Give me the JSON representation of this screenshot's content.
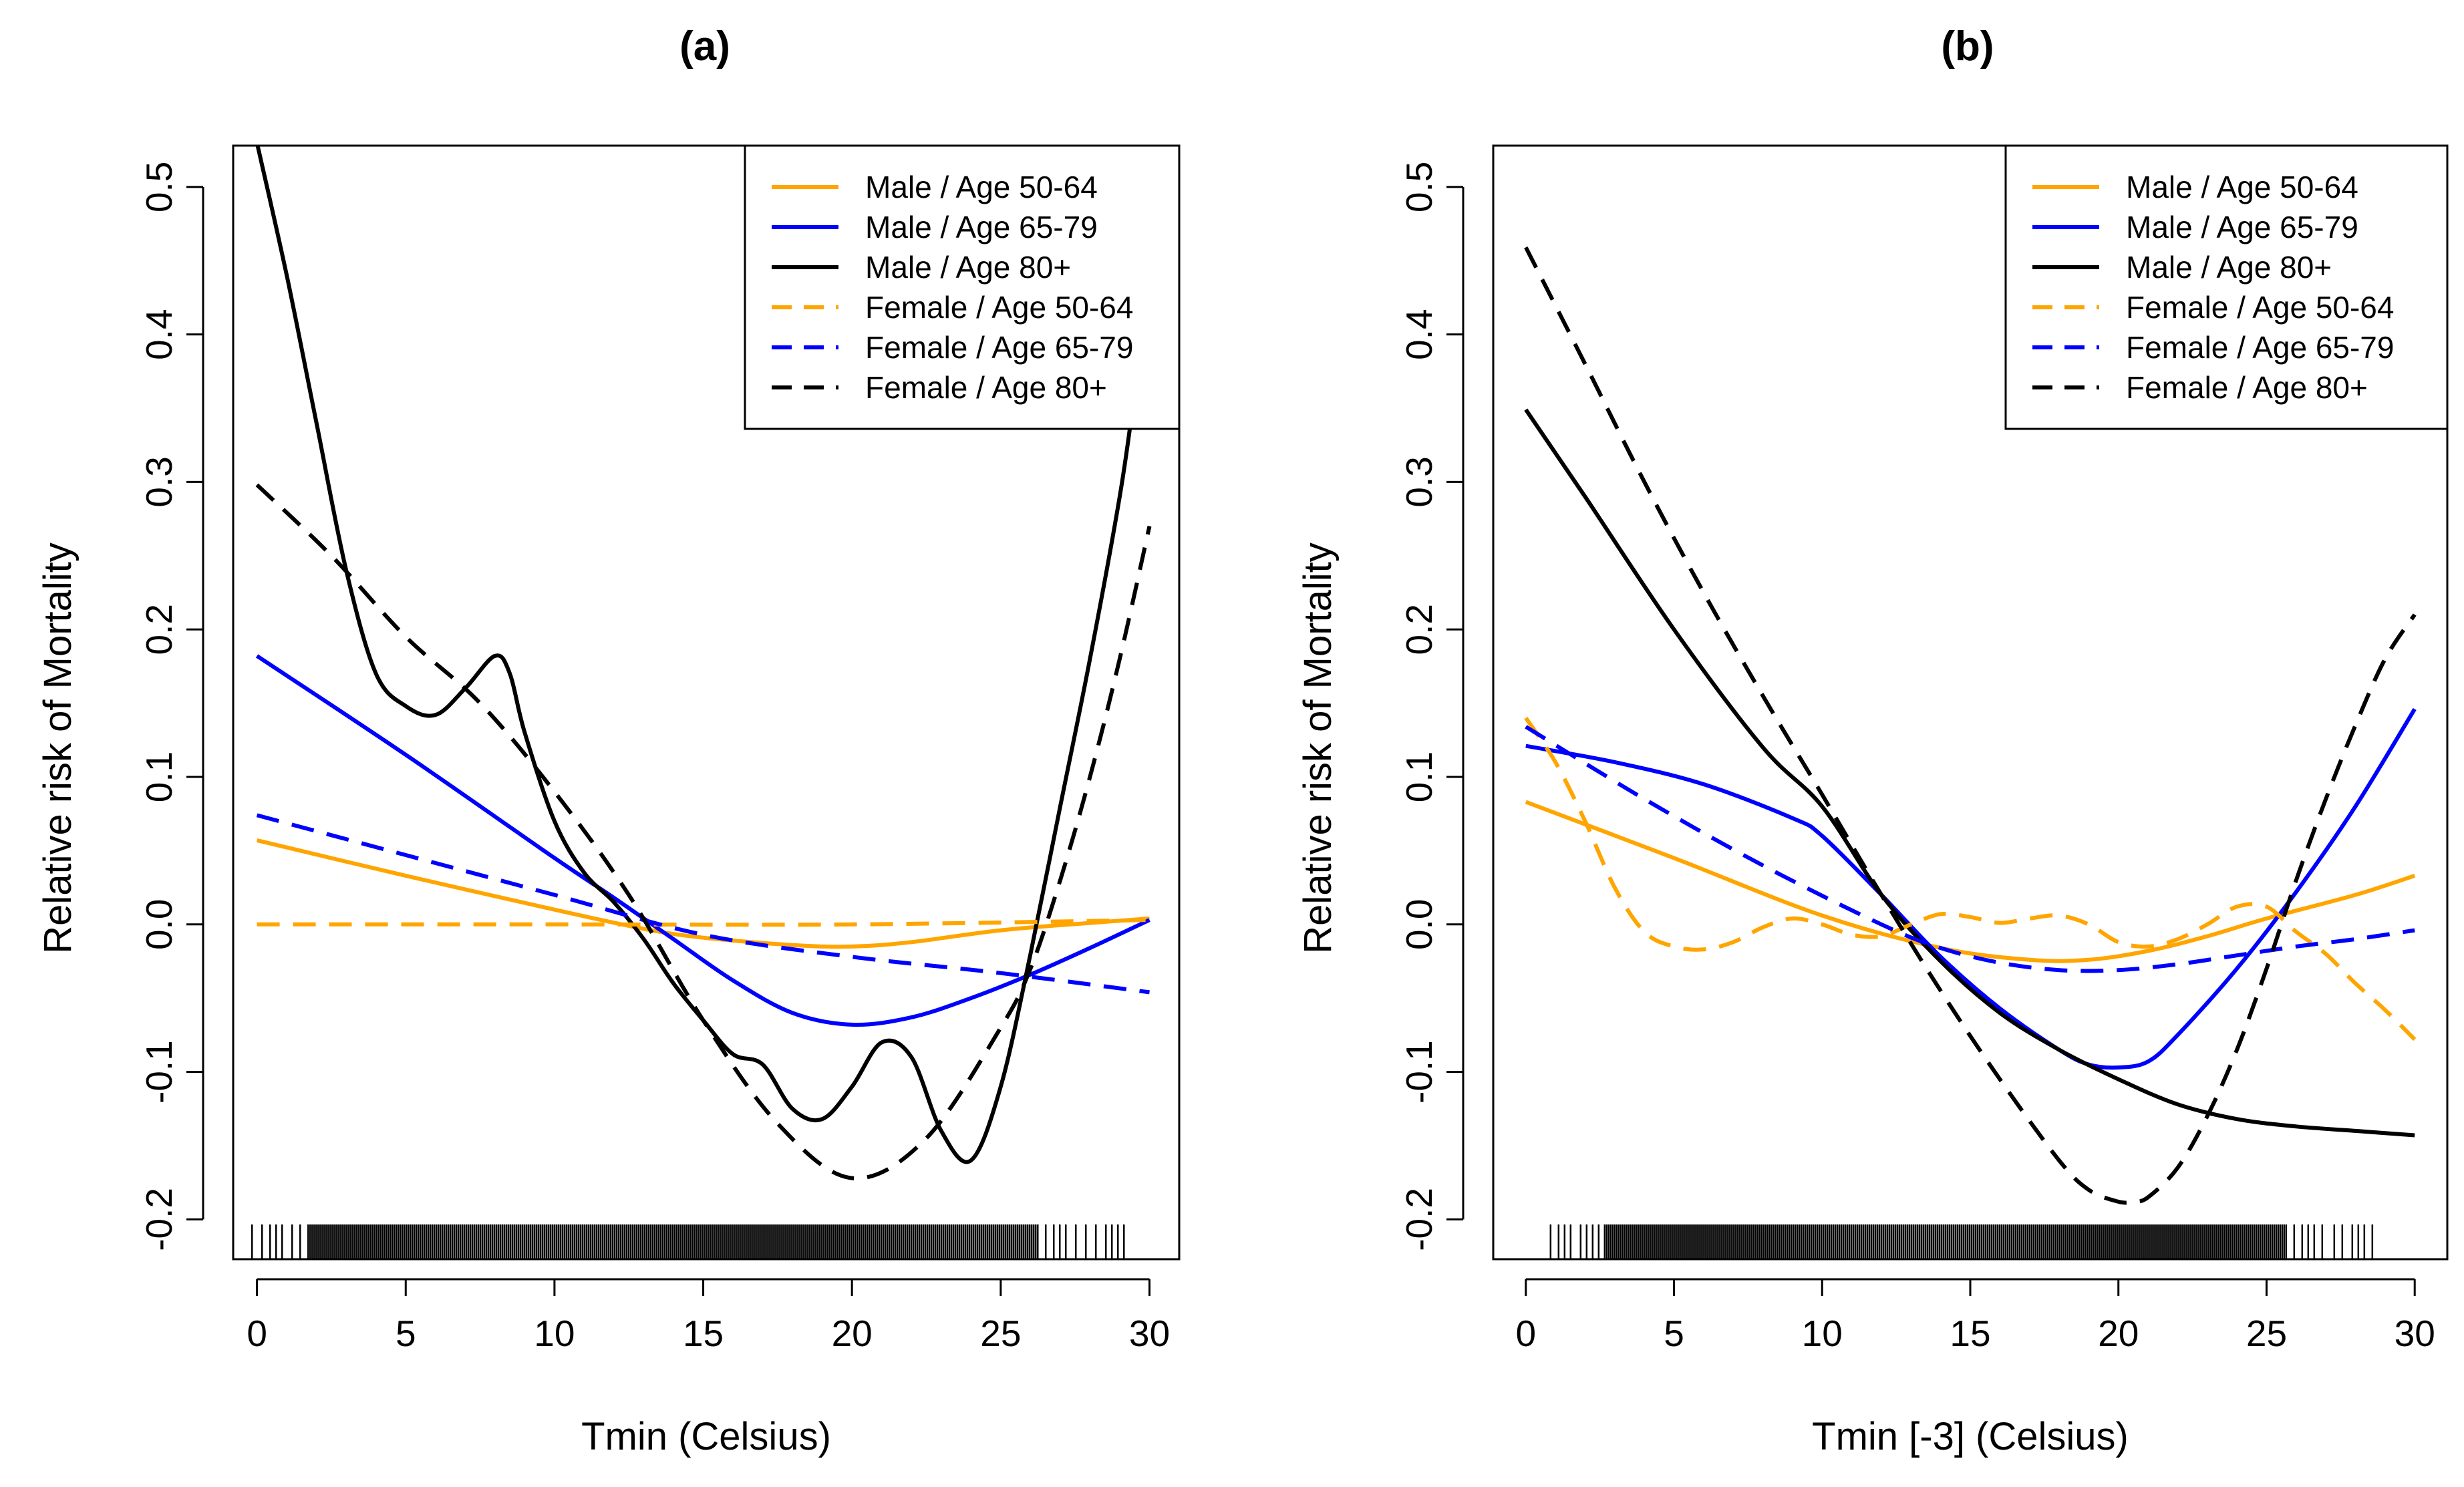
{
  "chart_data": [
    {
      "type": "line",
      "panel_label": "(a)",
      "xlabel": "Tmin  (Celsius)",
      "ylabel": "Relative risk of Mortality",
      "xlim": [
        -0.8,
        31
      ],
      "ylim": [
        -0.227,
        0.528
      ],
      "xticks": [
        "0",
        "5",
        "10",
        "15",
        "20",
        "25",
        "30"
      ],
      "yticks": [
        "-0.2",
        "-0.1",
        "0.0",
        "0.1",
        "0.2",
        "0.3",
        "0.4",
        "0.5"
      ],
      "rug_range": [
        -0.3,
        29.2
      ],
      "legend_position": "top-right",
      "series": [
        {
          "name": "Male / Age 50-64",
          "color": "#FFA500",
          "dash": "solid",
          "x": [
            0,
            5,
            10,
            13,
            15,
            18,
            20,
            22,
            25,
            28,
            30
          ],
          "y": [
            0.057,
            0.033,
            0.01,
            -0.003,
            -0.009,
            -0.014,
            -0.015,
            -0.012,
            -0.004,
            0.001,
            0.004
          ]
        },
        {
          "name": "Male / Age 65-79",
          "color": "#0000FF",
          "dash": "solid",
          "x": [
            0,
            5,
            10,
            12,
            14,
            16,
            18,
            20,
            22,
            24,
            26,
            28,
            30
          ],
          "y": [
            0.182,
            0.115,
            0.045,
            0.018,
            -0.01,
            -0.038,
            -0.06,
            -0.068,
            -0.063,
            -0.05,
            -0.034,
            -0.016,
            0.003
          ]
        },
        {
          "name": "Male / Age 80+",
          "color": "#000000",
          "dash": "solid",
          "x": [
            0,
            1,
            2,
            3,
            4,
            5,
            6,
            7,
            8,
            8.5,
            9,
            10,
            11,
            12,
            13,
            14,
            15,
            16,
            17,
            18,
            19,
            20,
            21,
            22,
            23,
            24,
            25,
            26,
            27,
            28,
            29,
            29.5
          ],
          "y": [
            0.53,
            0.44,
            0.34,
            0.24,
            0.17,
            0.148,
            0.142,
            0.16,
            0.182,
            0.17,
            0.13,
            0.07,
            0.035,
            0.015,
            -0.01,
            -0.04,
            -0.065,
            -0.088,
            -0.095,
            -0.125,
            -0.132,
            -0.11,
            -0.08,
            -0.09,
            -0.14,
            -0.16,
            -0.11,
            -0.02,
            0.08,
            0.18,
            0.29,
            0.36
          ]
        },
        {
          "name": "Female / Age 50-64",
          "color": "#FFA500",
          "dash": "dashed",
          "x": [
            0,
            10,
            20,
            30
          ],
          "y": [
            0.0,
            0.0,
            0.0,
            0.003
          ]
        },
        {
          "name": "Female / Age 65-79",
          "color": "#0000FF",
          "dash": "dashed",
          "x": [
            0,
            5,
            10,
            15,
            20,
            25,
            30
          ],
          "y": [
            0.074,
            0.047,
            0.02,
            -0.007,
            -0.022,
            -0.033,
            -0.046
          ]
        },
        {
          "name": "Female / Age 80+",
          "color": "#000000",
          "dash": "dashed",
          "x": [
            0,
            2.5,
            5,
            7.5,
            10,
            12.5,
            15,
            17.5,
            20,
            22.5,
            25,
            26,
            27,
            28,
            29,
            30
          ],
          "y": [
            0.298,
            0.25,
            0.195,
            0.15,
            0.09,
            0.02,
            -0.065,
            -0.135,
            -0.172,
            -0.145,
            -0.07,
            -0.03,
            0.03,
            0.1,
            0.18,
            0.27
          ]
        }
      ]
    },
    {
      "type": "line",
      "panel_label": "(b)",
      "xlabel": "Tmin [-3]  (Celsius)",
      "ylabel": "Relative risk of Mortality",
      "xlim": [
        -1.1,
        31.1
      ],
      "ylim": [
        -0.227,
        0.528
      ],
      "xticks": [
        "0",
        "5",
        "10",
        "15",
        "20",
        "25",
        "30"
      ],
      "yticks": [
        "-0.2",
        "-0.1",
        "0.0",
        "0.1",
        "0.2",
        "0.3",
        "0.4",
        "0.5"
      ],
      "rug_range": [
        0.7,
        28.5
      ],
      "legend_position": "top-right",
      "series": [
        {
          "name": "Male / Age 50-64",
          "color": "#FFA500",
          "dash": "solid",
          "x": [
            0,
            5,
            10,
            14,
            17,
            19,
            21,
            23,
            25,
            28,
            30
          ],
          "y": [
            0.083,
            0.045,
            0.006,
            -0.016,
            -0.024,
            -0.024,
            -0.018,
            -0.008,
            0.004,
            0.02,
            0.033
          ]
        },
        {
          "name": "Male / Age 65-79",
          "color": "#0000FF",
          "dash": "solid",
          "x": [
            0,
            3,
            6,
            9,
            10,
            12,
            14,
            16,
            18,
            19,
            20,
            21,
            22,
            24,
            26,
            28,
            30
          ],
          "y": [
            0.121,
            0.11,
            0.095,
            0.072,
            0.06,
            0.02,
            -0.022,
            -0.057,
            -0.085,
            -0.095,
            -0.097,
            -0.093,
            -0.075,
            -0.03,
            0.022,
            0.08,
            0.146
          ]
        },
        {
          "name": "Male / Age 80+",
          "color": "#000000",
          "dash": "solid",
          "x": [
            0,
            2,
            5,
            8,
            10,
            12,
            14,
            16,
            18,
            20,
            22,
            24,
            26,
            28,
            30
          ],
          "y": [
            0.349,
            0.29,
            0.2,
            0.12,
            0.08,
            0.02,
            -0.025,
            -0.06,
            -0.085,
            -0.105,
            -0.122,
            -0.132,
            -0.137,
            -0.14,
            -0.143
          ]
        },
        {
          "name": "Female / Age 50-64",
          "color": "#FFA500",
          "dash": "dashed",
          "x": [
            0,
            1,
            2,
            3,
            4,
            5,
            6,
            7,
            8,
            9,
            10,
            11,
            12,
            13,
            14,
            15,
            16,
            17,
            18,
            19,
            20,
            21,
            22,
            23,
            24,
            25,
            26,
            27,
            28,
            29,
            30
          ],
          "y": [
            0.14,
            0.11,
            0.07,
            0.025,
            -0.005,
            -0.015,
            -0.017,
            -0.012,
            -0.002,
            0.004,
            0.0,
            -0.007,
            -0.008,
            0.0,
            0.007,
            0.005,
            0.001,
            0.004,
            0.006,
            0.0,
            -0.012,
            -0.015,
            -0.01,
            0.0,
            0.012,
            0.012,
            -0.005,
            -0.02,
            -0.04,
            -0.058,
            -0.078
          ]
        },
        {
          "name": "Female / Age 65-79",
          "color": "#0000FF",
          "dash": "dashed",
          "x": [
            0,
            4,
            8,
            12,
            14,
            16,
            18,
            20,
            22,
            24,
            26,
            28,
            30
          ],
          "y": [
            0.134,
            0.085,
            0.04,
            0.0,
            -0.016,
            -0.026,
            -0.031,
            -0.031,
            -0.027,
            -0.021,
            -0.015,
            -0.01,
            -0.004
          ]
        },
        {
          "name": "Female / Age 80+",
          "color": "#000000",
          "dash": "dashed",
          "x": [
            0,
            2,
            4,
            6,
            8,
            10,
            12,
            14,
            16,
            18,
            19,
            20,
            20.5,
            21,
            22,
            23,
            24,
            25,
            26,
            27,
            28,
            29,
            30
          ],
          "y": [
            0.459,
            0.38,
            0.3,
            0.225,
            0.155,
            0.088,
            0.02,
            -0.045,
            -0.105,
            -0.16,
            -0.18,
            -0.188,
            -0.188,
            -0.185,
            -0.165,
            -0.13,
            -0.085,
            -0.03,
            0.03,
            0.085,
            0.135,
            0.18,
            0.21
          ]
        }
      ]
    }
  ]
}
